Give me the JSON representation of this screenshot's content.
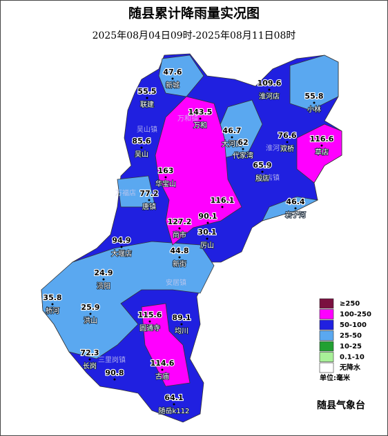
{
  "header": {
    "title": "随县累计降雨量实况图",
    "subtitle": "2025年08月04日09时-2025年08月11日08时"
  },
  "stations": [
    {
      "value": 47.6,
      "name": "新城"
    },
    {
      "value": 55.5,
      "name": "联建"
    },
    {
      "value": 143.5,
      "name": "万和"
    },
    {
      "value": 85.6,
      "name": "吴山"
    },
    {
      "value": 163,
      "name": "华宝山"
    },
    {
      "value": 77.2,
      "name": "唐镇"
    },
    {
      "value": 109.6,
      "name": "淮河店"
    },
    {
      "value": 55.8,
      "name": "小林"
    },
    {
      "value": 46.7,
      "name": "大河口"
    },
    {
      "value": 62,
      "name": "代家湾"
    },
    {
      "value": 76.6,
      "name": "双桥"
    },
    {
      "value": 116.6,
      "name": "草店"
    },
    {
      "value": 65.9,
      "name": "殷店"
    },
    {
      "value": 46.4,
      "name": "岩子河"
    },
    {
      "value": 116.1
    },
    {
      "value": 90.1
    },
    {
      "value": 127.2,
      "name": "尚市"
    },
    {
      "value": 30.1,
      "name": "厉山"
    },
    {
      "value": 94.9,
      "name": "大堰店"
    },
    {
      "value": 44.8,
      "name": "新街"
    },
    {
      "value": 24.9,
      "name": "涢阳"
    },
    {
      "value": 35.8,
      "name": "桥河"
    },
    {
      "value": 25.9,
      "name": "洪山"
    },
    {
      "value": 115.6,
      "name": "圆通寺"
    },
    {
      "value": 89.1,
      "name": "均川"
    },
    {
      "value": 72.3,
      "name": "长岗"
    },
    {
      "value": 90.8
    },
    {
      "value": 114.6,
      "name": "古庙"
    },
    {
      "value": 64.1,
      "name": "随岳k112"
    }
  ],
  "towns": [
    "万和镇",
    "吴山镇",
    "万福店",
    "淮河镇",
    "安居镇",
    "三里岗镇",
    "殷店镇"
  ],
  "legend": {
    "items": [
      {
        "label": "≥250",
        "color": "#7a1040"
      },
      {
        "label": "100-250",
        "color": "#ff00ff"
      },
      {
        "label": "50-100",
        "color": "#2020e0"
      },
      {
        "label": "25-50",
        "color": "#5aa8f0"
      },
      {
        "label": "10-25",
        "color": "#22a032"
      },
      {
        "label": "0.1-10",
        "color": "#a8f098"
      },
      {
        "label": "无降水",
        "color": "#ffffff"
      }
    ],
    "unit": "单位:毫米"
  },
  "footer": "随县气象台"
}
